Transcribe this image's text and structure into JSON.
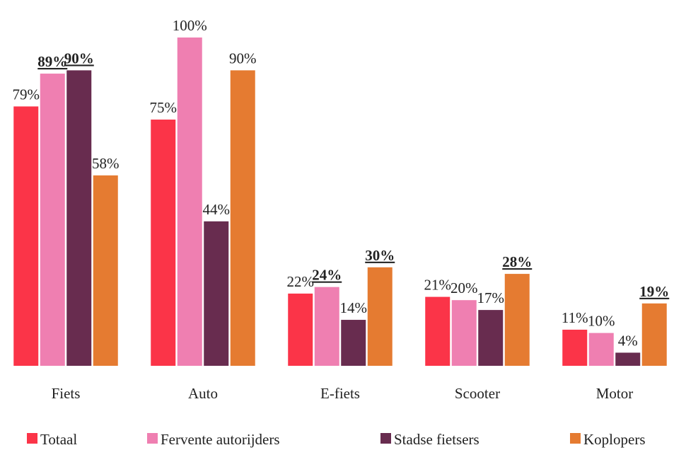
{
  "chart_data": {
    "type": "bar",
    "categories": [
      "Fiets",
      "Auto",
      "E-fiets",
      "Scooter",
      "Motor"
    ],
    "series": [
      {
        "name": "Totaal",
        "color": "#fb3448",
        "values": [
          79,
          75,
          22,
          21,
          11
        ],
        "value_labels": [
          "79%",
          "75%",
          "22%",
          "21%",
          "11%"
        ],
        "highlighted": [
          false,
          false,
          false,
          false,
          false
        ]
      },
      {
        "name": "Fervente autorijders",
        "color": "#ef7fb1",
        "values": [
          89,
          100,
          24,
          20,
          10
        ],
        "value_labels": [
          "89%",
          "100%",
          "24%",
          "20%",
          "10%"
        ],
        "highlighted": [
          true,
          false,
          true,
          false,
          false
        ]
      },
      {
        "name": "Stadse fietsers",
        "color": "#682c4f",
        "values": [
          90,
          44,
          14,
          17,
          4
        ],
        "value_labels": [
          "90%",
          "44%",
          "14%",
          "17%",
          "4%"
        ],
        "highlighted": [
          true,
          false,
          false,
          false,
          false
        ]
      },
      {
        "name": "Koplopers",
        "color": "#e57b31",
        "values": [
          58,
          90,
          30,
          28,
          19
        ],
        "value_labels": [
          "58%",
          "90%",
          "30%",
          "28%",
          "19%"
        ],
        "highlighted": [
          false,
          false,
          true,
          true,
          true
        ]
      }
    ],
    "ylim": [
      0,
      100
    ],
    "legend": "bottom"
  }
}
